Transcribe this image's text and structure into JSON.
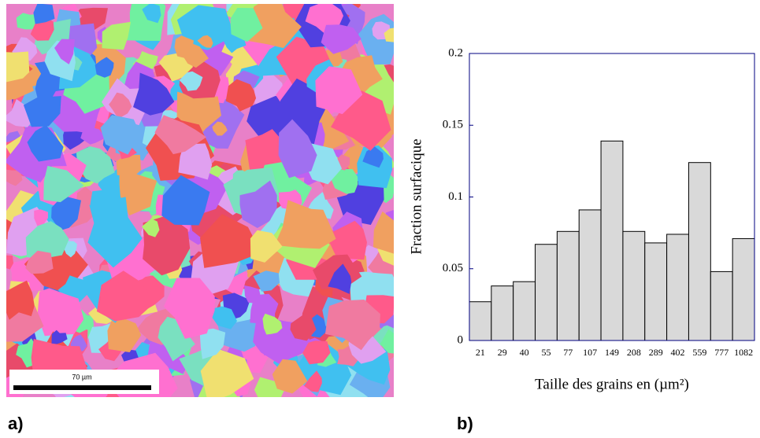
{
  "chart_data": {
    "type": "bar",
    "y_label": "Fraction surfacique",
    "x_label": "Taille des grains en (µm²)",
    "categories": [
      "21",
      "29",
      "40",
      "55",
      "77",
      "107",
      "149",
      "208",
      "289",
      "402",
      "559",
      "777",
      "1082"
    ],
    "values": [
      0.027,
      0.038,
      0.041,
      0.067,
      0.076,
      0.091,
      0.139,
      0.076,
      0.068,
      0.074,
      0.124,
      0.048,
      0.071
    ],
    "color": "#d9d9d9",
    "ylim": [
      0,
      0.2
    ],
    "yticks": [
      0,
      0.05,
      0.1,
      0.15,
      0.2
    ],
    "grid": false
  },
  "map": {
    "scale_label": "70 µm"
  },
  "panel_labels": [
    "a)",
    "b)"
  ]
}
